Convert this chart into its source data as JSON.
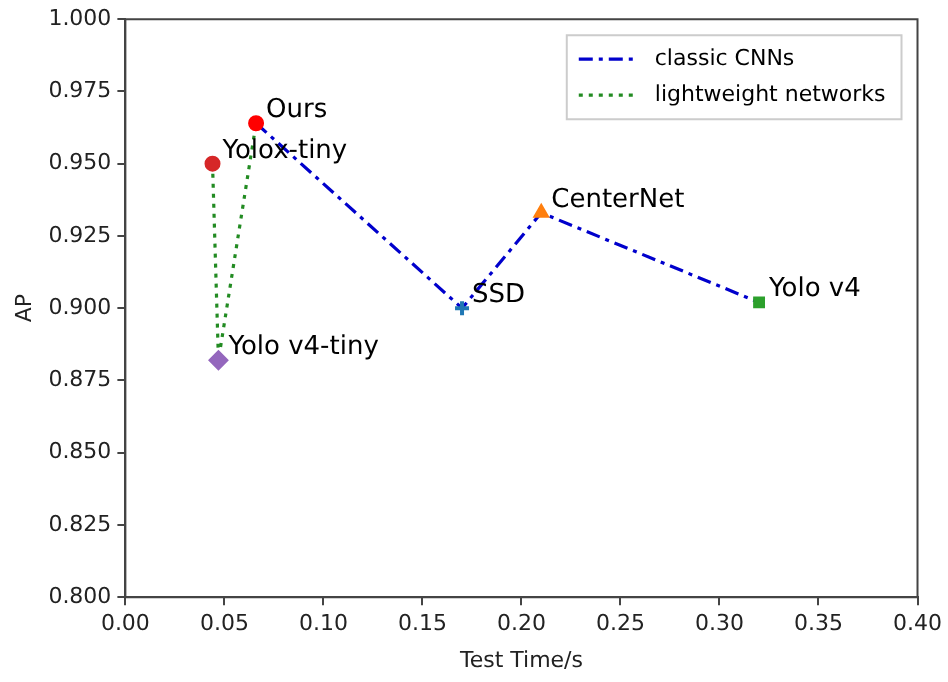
{
  "chart_data": {
    "type": "line",
    "xlabel": "Test Time/s",
    "ylabel": "AP",
    "xlim": [
      0,
      0.4
    ],
    "ylim": [
      0.8,
      1.0
    ],
    "xticks": [
      {
        "value": 0,
        "label": "0.00"
      },
      0.05,
      {
        "value": 0.1,
        "label": "0.10"
      },
      0.15,
      {
        "value": 0.2,
        "label": "0.20"
      },
      0.25,
      {
        "value": 0.3,
        "label": "0.30"
      },
      0.35,
      {
        "value": 0.4,
        "label": "0.40"
      }
    ],
    "yticks": [
      {
        "value": 0.8,
        "label": "0.800"
      },
      0.825,
      {
        "value": 0.85,
        "label": "0.850"
      },
      0.875,
      {
        "value": 0.9,
        "label": "0.900"
      },
      0.925,
      {
        "value": 0.95,
        "label": "0.950"
      },
      0.975,
      {
        "value": 1.0,
        "label": "1.000"
      }
    ],
    "grid": false,
    "legend": "top right",
    "series": [
      {
        "name": "classic CNNs",
        "color": "#0000cc",
        "line_style": "dashdot",
        "marker": "none",
        "x": [
          0.066,
          0.17,
          0.21,
          0.32
        ],
        "values": [
          0.964,
          0.9,
          0.933,
          0.902
        ]
      },
      {
        "name": "lightweight networks",
        "color": "#228b22",
        "line_style": "dotted",
        "marker": "none",
        "x": [
          0.044,
          0.047,
          0.066
        ],
        "values": [
          0.95,
          0.882,
          0.964
        ]
      },
      {
        "type": "scatter",
        "color": "#ff0000",
        "marker": "circle",
        "x": [
          0.066
        ],
        "values": [
          0.964
        ]
      },
      {
        "type": "scatter",
        "color": "#d62728",
        "marker": "circle",
        "x": [
          0.044
        ],
        "values": [
          0.95
        ]
      },
      {
        "type": "scatter",
        "color": "#9467bd",
        "marker": "diamond",
        "x": [
          0.047
        ],
        "values": [
          0.882
        ]
      },
      {
        "type": "scatter",
        "color": "#1f77b4",
        "marker": "cross",
        "x": [
          0.17
        ],
        "values": [
          0.9
        ]
      },
      {
        "type": "scatter",
        "color": "#ff7f0e",
        "marker": "triangle",
        "x": [
          0.21
        ],
        "values": [
          0.933
        ]
      },
      {
        "type": "scatter",
        "color": "#2ca02c",
        "marker": "square",
        "x": [
          0.32
        ],
        "values": [
          0.902
        ]
      }
    ],
    "annotations": [
      {
        "text": "Ours",
        "x": 0.066,
        "y": 0.964
      },
      {
        "text": "Yolox-tiny",
        "x": 0.044,
        "y": 0.95
      },
      {
        "text": "Yolo v4-tiny",
        "x": 0.047,
        "y": 0.882
      },
      {
        "text": "SSD",
        "x": 0.17,
        "y": 0.9
      },
      {
        "text": "CenterNet",
        "x": 0.21,
        "y": 0.933
      },
      {
        "text": "Yolo v4",
        "x": 0.32,
        "y": 0.902
      }
    ]
  }
}
